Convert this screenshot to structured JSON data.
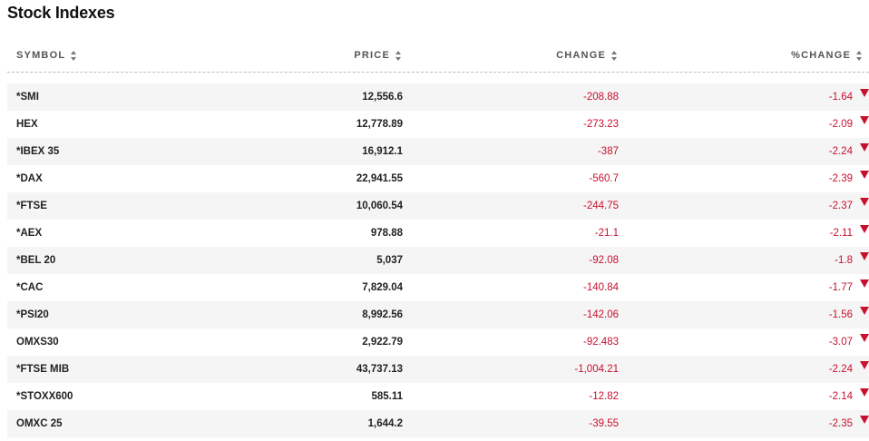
{
  "title": "Stock Indexes",
  "columns": {
    "symbol": "SYMBOL",
    "price": "PRICE",
    "change": "CHANGE",
    "pct_change": "%CHANGE"
  },
  "colors": {
    "negative": "#c8102e",
    "stripe": "#f5f5f5"
  },
  "rows": [
    {
      "symbol": "*SMI",
      "price": "12,556.6",
      "change": "-208.88",
      "pct": "-1.64",
      "direction": "down"
    },
    {
      "symbol": "HEX",
      "price": "12,778.89",
      "change": "-273.23",
      "pct": "-2.09",
      "direction": "down"
    },
    {
      "symbol": "*IBEX 35",
      "price": "16,912.1",
      "change": "-387",
      "pct": "-2.24",
      "direction": "down"
    },
    {
      "symbol": "*DAX",
      "price": "22,941.55",
      "change": "-560.7",
      "pct": "-2.39",
      "direction": "down"
    },
    {
      "symbol": "*FTSE",
      "price": "10,060.54",
      "change": "-244.75",
      "pct": "-2.37",
      "direction": "down"
    },
    {
      "symbol": "*AEX",
      "price": "978.88",
      "change": "-21.1",
      "pct": "-2.11",
      "direction": "down"
    },
    {
      "symbol": "*BEL 20",
      "price": "5,037",
      "change": "-92.08",
      "pct": "-1.8",
      "direction": "down"
    },
    {
      "symbol": "*CAC",
      "price": "7,829.04",
      "change": "-140.84",
      "pct": "-1.77",
      "direction": "down"
    },
    {
      "symbol": "*PSI20",
      "price": "8,992.56",
      "change": "-142.06",
      "pct": "-1.56",
      "direction": "down"
    },
    {
      "symbol": "OMXS30",
      "price": "2,922.79",
      "change": "-92.483",
      "pct": "-3.07",
      "direction": "down"
    },
    {
      "symbol": "*FTSE MIB",
      "price": "43,737.13",
      "change": "-1,004.21",
      "pct": "-2.24",
      "direction": "down"
    },
    {
      "symbol": "*STOXX600",
      "price": "585.11",
      "change": "-12.82",
      "pct": "-2.14",
      "direction": "down"
    },
    {
      "symbol": "OMXC 25",
      "price": "1,644.2",
      "change": "-39.55",
      "pct": "-2.35",
      "direction": "down"
    }
  ]
}
